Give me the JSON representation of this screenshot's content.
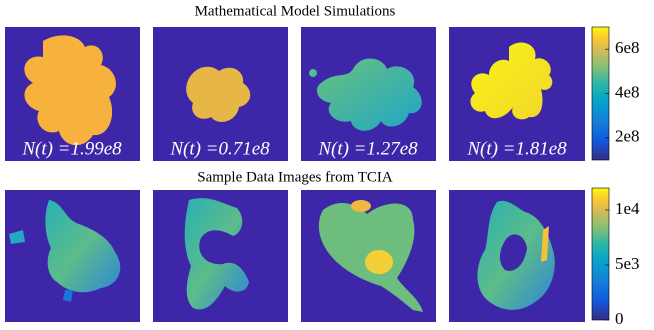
{
  "rows": [
    {
      "title": "Mathematical Model Simulations",
      "panels": [
        {
          "label": "N(t) =1.99e8"
        },
        {
          "label": "N(t) =0.71e8"
        },
        {
          "label": "N(t) =1.27e8"
        },
        {
          "label": "N(t) =1.81e8"
        }
      ],
      "colorbar": {
        "lim": [
          100000000,
          700000000
        ],
        "ticks": [
          {
            "value": 200000000,
            "label": "2e8"
          },
          {
            "value": 400000000,
            "label": "4e8"
          },
          {
            "value": 600000000,
            "label": "6e8"
          }
        ]
      }
    },
    {
      "title": "Sample Data Images from TCIA",
      "colorbar": {
        "lim": [
          0,
          12000
        ],
        "ticks": [
          0,
          {
            "value": 5000,
            "label": "5e3"
          },
          {
            "value": 10000,
            "label": "1e4"
          }
        ]
      }
    }
  ]
}
